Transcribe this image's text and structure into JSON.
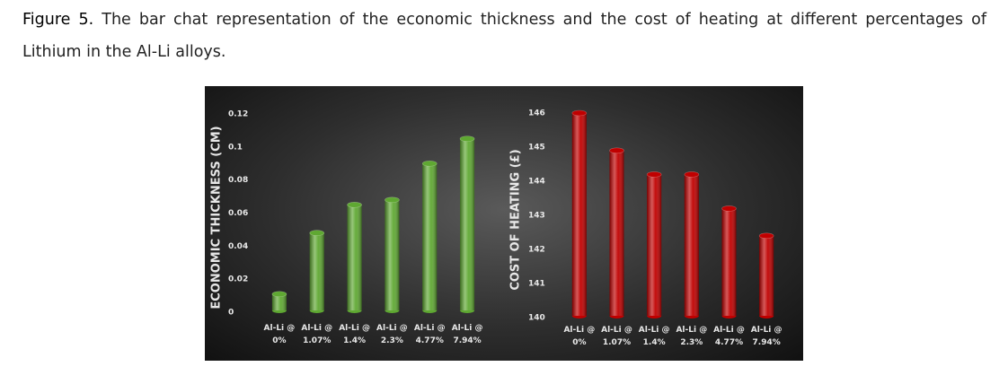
{
  "caption": {
    "label": "Figure 5.",
    "text": "The bar chat representation of the economic thickness and the cost of heating at different percentages of Lithium in the Al-Li alloys."
  },
  "chart_data": [
    {
      "type": "bar",
      "y_label": "ECONOMIC THICKNESS (CM)",
      "categories": [
        "Al-Li @\n0%",
        "Al-Li @\n1.07%",
        "Al-Li @\n1.4%",
        "Al-Li @\n2.3%",
        "Al-Li @\n4.77%",
        "Al-Li @\n7.94%"
      ],
      "values": [
        0.011,
        0.048,
        0.065,
        0.068,
        0.09,
        0.105
      ],
      "color": "#5fa832",
      "ylim": [
        0,
        0.12
      ],
      "yticks": [
        0,
        0.02,
        0.04,
        0.06,
        0.08,
        0.1,
        0.12
      ]
    },
    {
      "type": "bar",
      "y_label": "COST OF HEATING (£)",
      "categories": [
        "Al-Li @\n0%",
        "Al-Li @\n1.07%",
        "Al-Li @\n1.4%",
        "Al-Li @\n2.3%",
        "Al-Li @\n4.77%",
        "Al-Li @\n7.94%"
      ],
      "values": [
        146.0,
        144.9,
        144.2,
        144.2,
        143.2,
        142.4
      ],
      "color": "#c00000",
      "ylim": [
        140,
        146
      ],
      "yticks": [
        140,
        141,
        142,
        143,
        144,
        145,
        146
      ]
    }
  ]
}
